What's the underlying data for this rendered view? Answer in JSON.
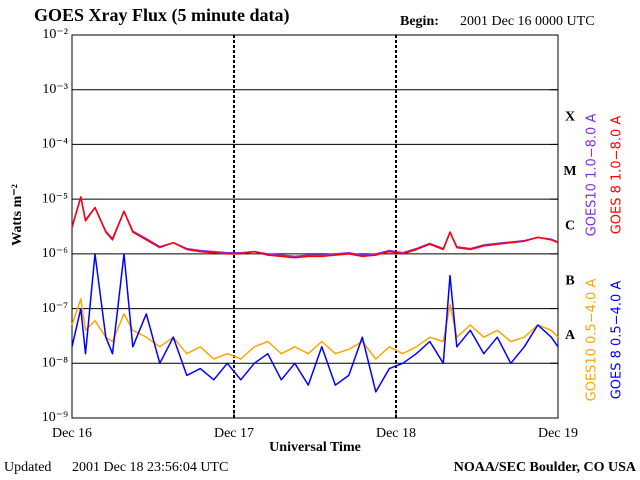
{
  "chart_data": {
    "type": "line",
    "title": "GOES Xray Flux (5 minute data)",
    "begin_label": "Begin:",
    "begin": "2001 Dec 16 0000 UTC",
    "updated_label": "Updated",
    "updated": "2001 Dec 18 23:56:04 UTC",
    "credit": "NOAA/SEC Boulder, CO USA",
    "xlabel": "Universal Time",
    "ylabel": "Watts m⁻²",
    "log_y": true,
    "grid": true,
    "xlim": [
      0,
      72
    ],
    "xticks": [
      {
        "value": 0,
        "label": "Dec 16"
      },
      {
        "value": 24,
        "label": "Dec 17"
      },
      {
        "value": 48,
        "label": "Dec 18"
      },
      {
        "value": 72,
        "label": "Dec 19"
      }
    ],
    "ylim": [
      1e-09,
      0.01
    ],
    "yticks": [
      {
        "value": 1e-09,
        "label": "10⁻⁹"
      },
      {
        "value": 1e-08,
        "label": "10⁻⁸"
      },
      {
        "value": 1e-07,
        "label": "10⁻⁷"
      },
      {
        "value": 1e-06,
        "label": "10⁻⁶"
      },
      {
        "value": 1e-05,
        "label": "10⁻⁵"
      },
      {
        "value": 0.0001,
        "label": "10⁻⁴"
      },
      {
        "value": 0.001,
        "label": "10⁻³"
      },
      {
        "value": 0.01,
        "label": "10⁻²"
      }
    ],
    "flare_classes": [
      {
        "label": "A",
        "value": 1e-08
      },
      {
        "label": "B",
        "value": 1e-07
      },
      {
        "label": "C",
        "value": 1e-06
      },
      {
        "label": "M",
        "value": 1e-05
      },
      {
        "label": "X",
        "value": 0.0001
      }
    ],
    "x": [
      0,
      1.3,
      2,
      3.4,
      5,
      6,
      7.7,
      9,
      11,
      13,
      15,
      17,
      19,
      21,
      23,
      25,
      27,
      29,
      31,
      33,
      35,
      37,
      39,
      41,
      43,
      45,
      47,
      49,
      51,
      53,
      55,
      56,
      57,
      59,
      61,
      63,
      65,
      67,
      69,
      71,
      72
    ],
    "series": [
      {
        "name": "GOES10 1.0−8.0 A",
        "color": "#8a2be2",
        "values": [
          3.1e-06,
          1.1e-05,
          4.2e-06,
          7e-06,
          2.6e-06,
          1.9e-06,
          6e-06,
          2.6e-06,
          1.9e-06,
          1.35e-06,
          1.6e-06,
          1.25e-06,
          1.15e-06,
          1.1e-06,
          1.05e-06,
          1.05e-06,
          1.1e-06,
          1e-06,
          9.5e-07,
          9e-07,
          9.5e-07,
          9.5e-07,
          1e-06,
          1.05e-06,
          9.5e-07,
          1e-06,
          1.15e-06,
          1.05e-06,
          1.25e-06,
          1.55e-06,
          1.25e-06,
          2.5e-06,
          1.35e-06,
          1.25e-06,
          1.45e-06,
          1.55e-06,
          1.65e-06,
          1.75e-06,
          2e-06,
          1.85e-06,
          1.65e-06
        ]
      },
      {
        "name": "GOES 8 1.0−8.0 A",
        "color": "#ff0000",
        "values": [
          3e-06,
          1.1e-05,
          4e-06,
          7e-06,
          2.5e-06,
          1.8e-06,
          6e-06,
          2.5e-06,
          1.8e-06,
          1.3e-06,
          1.6e-06,
          1.2e-06,
          1.1e-06,
          1.05e-06,
          1e-06,
          1e-06,
          1.1e-06,
          9.5e-07,
          9e-07,
          8.5e-07,
          9e-07,
          9e-07,
          9.5e-07,
          1e-06,
          9e-07,
          9.5e-07,
          1.1e-06,
          1e-06,
          1.2e-06,
          1.5e-06,
          1.2e-06,
          2.5e-06,
          1.3e-06,
          1.2e-06,
          1.4e-06,
          1.5e-06,
          1.6e-06,
          1.7e-06,
          2e-06,
          1.8e-06,
          1.6e-06
        ]
      },
      {
        "name": "GOES10 0.5−4.0 A",
        "color": "#ffa500",
        "values": [
          5e-08,
          1.5e-07,
          4e-08,
          6e-08,
          3e-08,
          2.5e-08,
          8e-08,
          4e-08,
          3e-08,
          2e-08,
          3e-08,
          1.5e-08,
          2e-08,
          1.2e-08,
          1.5e-08,
          1.2e-08,
          2e-08,
          2.5e-08,
          1.5e-08,
          2e-08,
          1.5e-08,
          2.5e-08,
          1.5e-08,
          1.8e-08,
          2.5e-08,
          1.2e-08,
          2e-08,
          1.5e-08,
          2e-08,
          3e-08,
          2.5e-08,
          1.2e-07,
          3e-08,
          5e-08,
          3e-08,
          4e-08,
          2.5e-08,
          3e-08,
          5e-08,
          4e-08,
          3e-08
        ]
      },
      {
        "name": "GOES 8 0.5−4.0 A",
        "color": "#0000ff",
        "values": [
          2e-08,
          1e-07,
          1.5e-08,
          1e-06,
          3e-08,
          1.5e-08,
          1e-06,
          2e-08,
          8e-08,
          1e-08,
          3e-08,
          6e-09,
          8e-09,
          5e-09,
          1e-08,
          5e-09,
          1e-08,
          1.5e-08,
          5e-09,
          1e-08,
          4e-09,
          2e-08,
          4e-09,
          6e-09,
          3e-08,
          3e-09,
          8e-09,
          1e-08,
          1.5e-08,
          2.5e-08,
          1e-08,
          4e-07,
          2e-08,
          4e-08,
          1.5e-08,
          3e-08,
          1e-08,
          2e-08,
          5e-08,
          3e-08,
          2e-08
        ]
      }
    ]
  }
}
